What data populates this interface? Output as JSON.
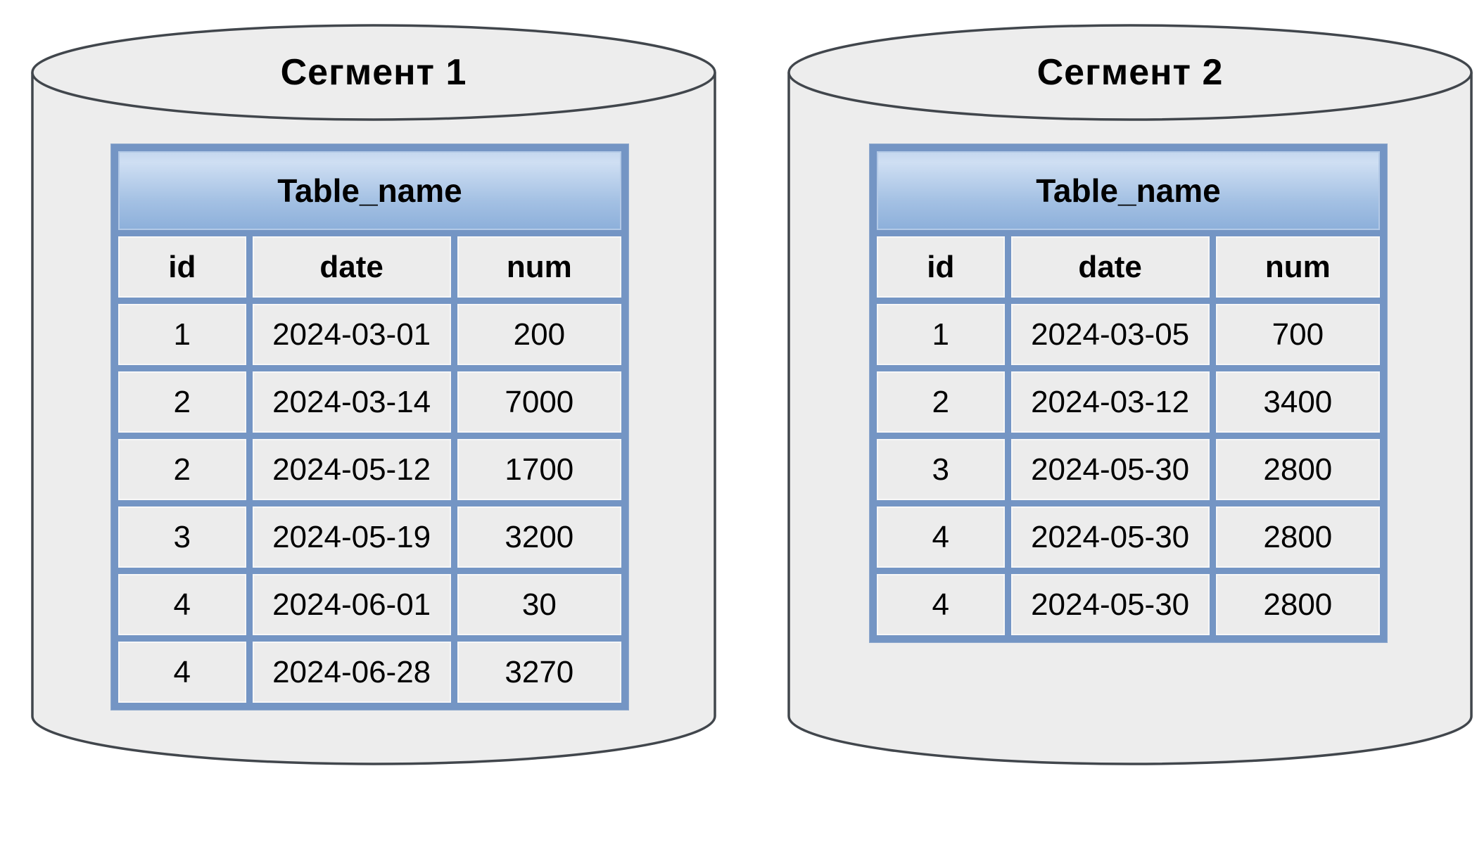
{
  "segments": [
    {
      "title": "Сегмент 1",
      "table": {
        "name": "Table_name",
        "columns": [
          "id",
          "date",
          "num"
        ],
        "rows": [
          [
            "1",
            "2024-03-01",
            "200"
          ],
          [
            "2",
            "2024-03-14",
            "7000"
          ],
          [
            "2",
            "2024-05-12",
            "1700"
          ],
          [
            "3",
            "2024-05-19",
            "3200"
          ],
          [
            "4",
            "2024-06-01",
            "30"
          ],
          [
            "4",
            "2024-06-28",
            "3270"
          ]
        ]
      }
    },
    {
      "title": "Сегмент 2",
      "table": {
        "name": "Table_name",
        "columns": [
          "id",
          "date",
          "num"
        ],
        "rows": [
          [
            "1",
            "2024-03-05",
            "700"
          ],
          [
            "2",
            "2024-03-12",
            "3400"
          ],
          [
            "3",
            "2024-05-30",
            "2800"
          ],
          [
            "4",
            "2024-05-30",
            "2800"
          ],
          [
            "4",
            "2024-05-30",
            "2800"
          ]
        ]
      }
    }
  ],
  "colors": {
    "cylinder_fill": "#ededed",
    "cylinder_stroke": "#41464c",
    "table_background_blue": "#7495c4",
    "header_gradient_top": "#c3d6ee",
    "header_gradient_bottom": "#8cafda",
    "cell_background": "#ececec",
    "text": "#000000"
  }
}
